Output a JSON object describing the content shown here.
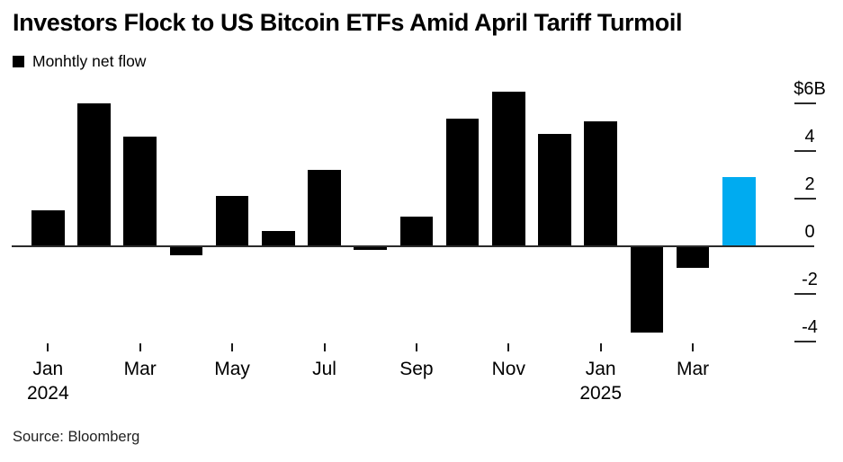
{
  "title": "Investors Flock to US Bitcoin ETFs Amid April Tariff Turmoil",
  "legend": {
    "label": "Monhtly net flow",
    "marker_color": "#000000"
  },
  "source": "Source: Bloomberg",
  "colors": {
    "bar_default": "#000000",
    "bar_highlight": "#00abf0",
    "axis": "#2b2b2b"
  },
  "chart_data": {
    "type": "bar",
    "title": "Investors Flock to US Bitcoin ETFs Amid April Tariff Turmoil",
    "series_name": "Monhtly net flow",
    "unit": "$B",
    "x": [
      "Jan 2024",
      "Feb 2024",
      "Mar 2024",
      "Apr 2024",
      "May 2024",
      "Jun 2024",
      "Jul 2024",
      "Aug 2024",
      "Sep 2024",
      "Oct 2024",
      "Nov 2024",
      "Dec 2024",
      "Jan 2025",
      "Feb 2025",
      "Mar 2025",
      "Apr 2025"
    ],
    "values": [
      1.5,
      6.0,
      4.6,
      -0.35,
      2.1,
      0.65,
      3.2,
      -0.1,
      1.25,
      5.35,
      6.5,
      4.7,
      5.25,
      -3.6,
      -0.85,
      2.9
    ],
    "highlight_index": 15,
    "ylim": [
      -5,
      6.6
    ],
    "y_axis": {
      "side": "right",
      "tick_labels": [
        "$6B",
        "4",
        "2",
        "0",
        "-2",
        "-4"
      ],
      "tick_values": [
        6,
        4,
        2,
        0,
        -2,
        -4
      ]
    },
    "x_axis": {
      "tick_month_labels": [
        "Jan",
        "Mar",
        "May",
        "Jul",
        "Sep",
        "Nov",
        "Jan",
        "Mar"
      ],
      "tick_indices": [
        0,
        2,
        4,
        6,
        8,
        10,
        12,
        14
      ],
      "year_labels": [
        {
          "text": "2024",
          "index": 0
        },
        {
          "text": "2025",
          "index": 12
        }
      ]
    },
    "grid": false,
    "legend_position": "top-left"
  }
}
